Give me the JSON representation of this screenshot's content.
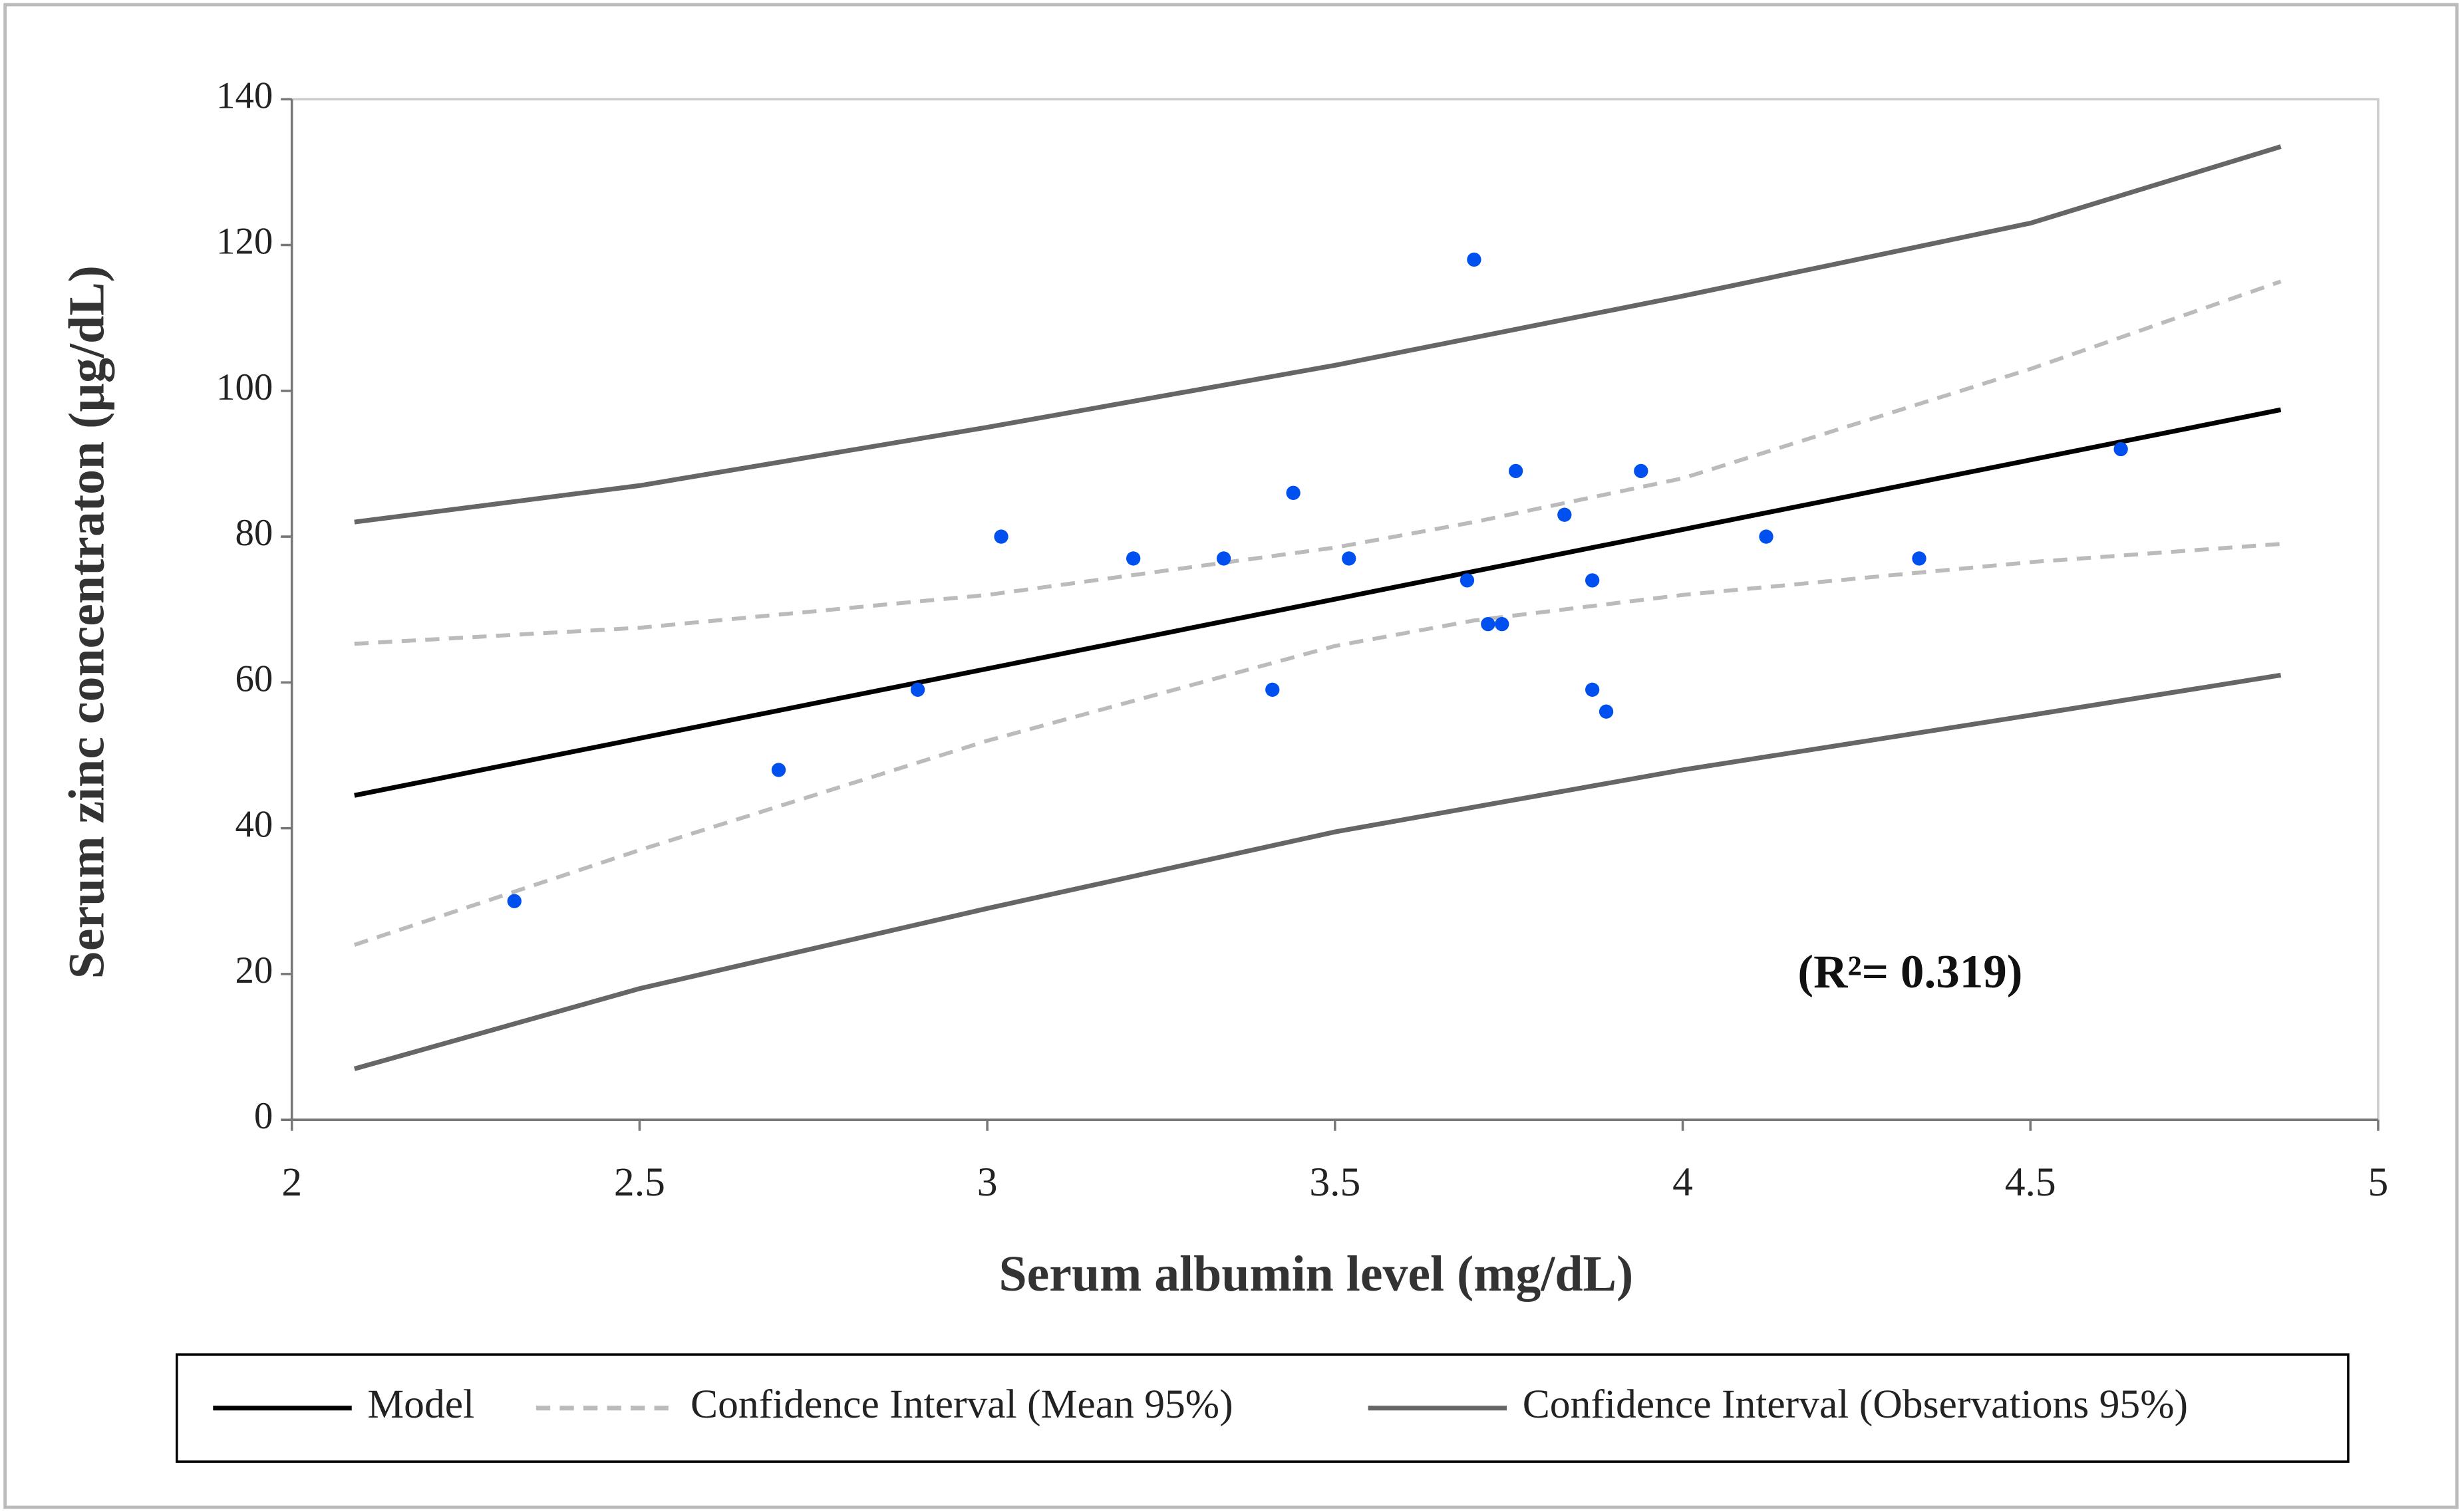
{
  "chart_data": {
    "type": "scatter",
    "x_label": "Serum albumin level (mg/dL)",
    "y_label": "Serum zinc concentraton (µg/dL)",
    "annotation": "(R²= 0.319)",
    "xlim": [
      2,
      5
    ],
    "ylim": [
      0,
      140
    ],
    "xticks": [
      2,
      2.5,
      3,
      3.5,
      4,
      4.5,
      5
    ],
    "yticks": [
      0,
      20,
      40,
      60,
      80,
      100,
      120,
      140
    ],
    "points": {
      "color": "#0050f0",
      "x": [
        2.32,
        2.7,
        2.9,
        3.02,
        3.21,
        3.34,
        3.41,
        3.44,
        3.52,
        3.69,
        3.7,
        3.72,
        3.74,
        3.76,
        3.83,
        3.87,
        3.87,
        3.89,
        3.94,
        4.12,
        4.34,
        4.63
      ],
      "y": [
        30,
        48,
        59,
        80,
        77,
        77,
        59,
        86,
        77,
        74,
        118,
        68,
        68,
        89,
        83,
        74,
        59,
        56,
        89,
        80,
        77,
        92
      ]
    },
    "series": [
      {
        "name": "Model",
        "color": "#000000",
        "dashed": false,
        "x": [
          2.09,
          4.86
        ],
        "values": [
          44.5,
          97.4
        ]
      },
      {
        "name": "Confidence Interval (Mean 95%)",
        "color": "#bbbbbb",
        "dashed": true,
        "x": [
          2.09,
          2.5,
          3,
          3.5,
          3.7,
          4,
          4.5,
          4.86
        ],
        "values": [
          65.3,
          67.5,
          72,
          78.5,
          82,
          88,
          103,
          115
        ],
        "lower": [
          24,
          37,
          52,
          65,
          68.5,
          72,
          76.5,
          79
        ]
      },
      {
        "name": "Confidence Interval (Observations 95%)",
        "color": "#666666",
        "dashed": false,
        "x": [
          2.09,
          2.5,
          3,
          3.5,
          4,
          4.5,
          4.86
        ],
        "values": [
          82,
          87,
          95,
          103.5,
          113,
          123,
          133.5
        ],
        "lower": [
          7,
          18,
          29,
          39.5,
          48,
          55.5,
          61
        ]
      }
    ]
  }
}
